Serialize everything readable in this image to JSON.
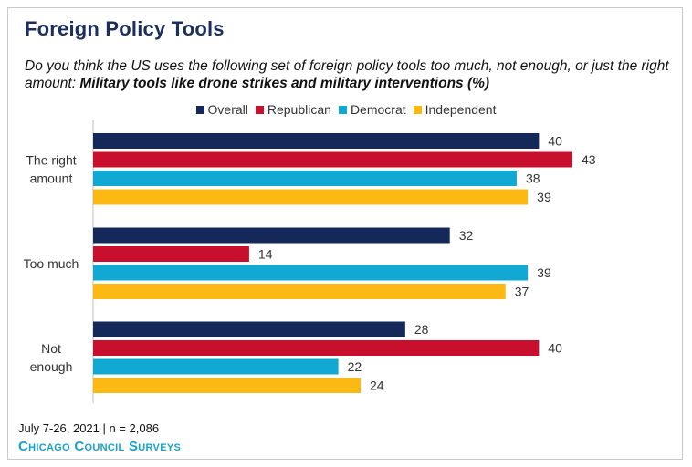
{
  "header": {
    "title": "Foreign Policy Tools",
    "subtitle_lead": "Do you think the US uses the following set of foreign policy tools too much, not enough, or just the right amount:",
    "subtitle_bold": "Military tools like drone strikes and military interventions (%)"
  },
  "footer": {
    "note": "July 7-26, 2021 | n = 2,086",
    "brand": "Chicago Council Surveys"
  },
  "colors": {
    "Overall": "#14295a",
    "Republican": "#c8102e",
    "Democrat": "#11a8d3",
    "Independent": "#fdb913"
  },
  "chart_data": {
    "type": "bar",
    "orientation": "horizontal",
    "categories": [
      "The right amount",
      "Too much",
      "Not enough"
    ],
    "category_lines": [
      [
        "The right",
        "amount"
      ],
      [
        "Too much"
      ],
      [
        "Not",
        "enough"
      ]
    ],
    "series": [
      {
        "name": "Overall",
        "values": [
          40,
          32,
          28
        ]
      },
      {
        "name": "Republican",
        "values": [
          43,
          14,
          40
        ]
      },
      {
        "name": "Democrat",
        "values": [
          38,
          39,
          22
        ]
      },
      {
        "name": "Independent",
        "values": [
          39,
          37,
          24
        ]
      }
    ],
    "xlim": [
      0,
      43
    ],
    "legend": "top-center",
    "grid": false,
    "data_labels": true
  }
}
